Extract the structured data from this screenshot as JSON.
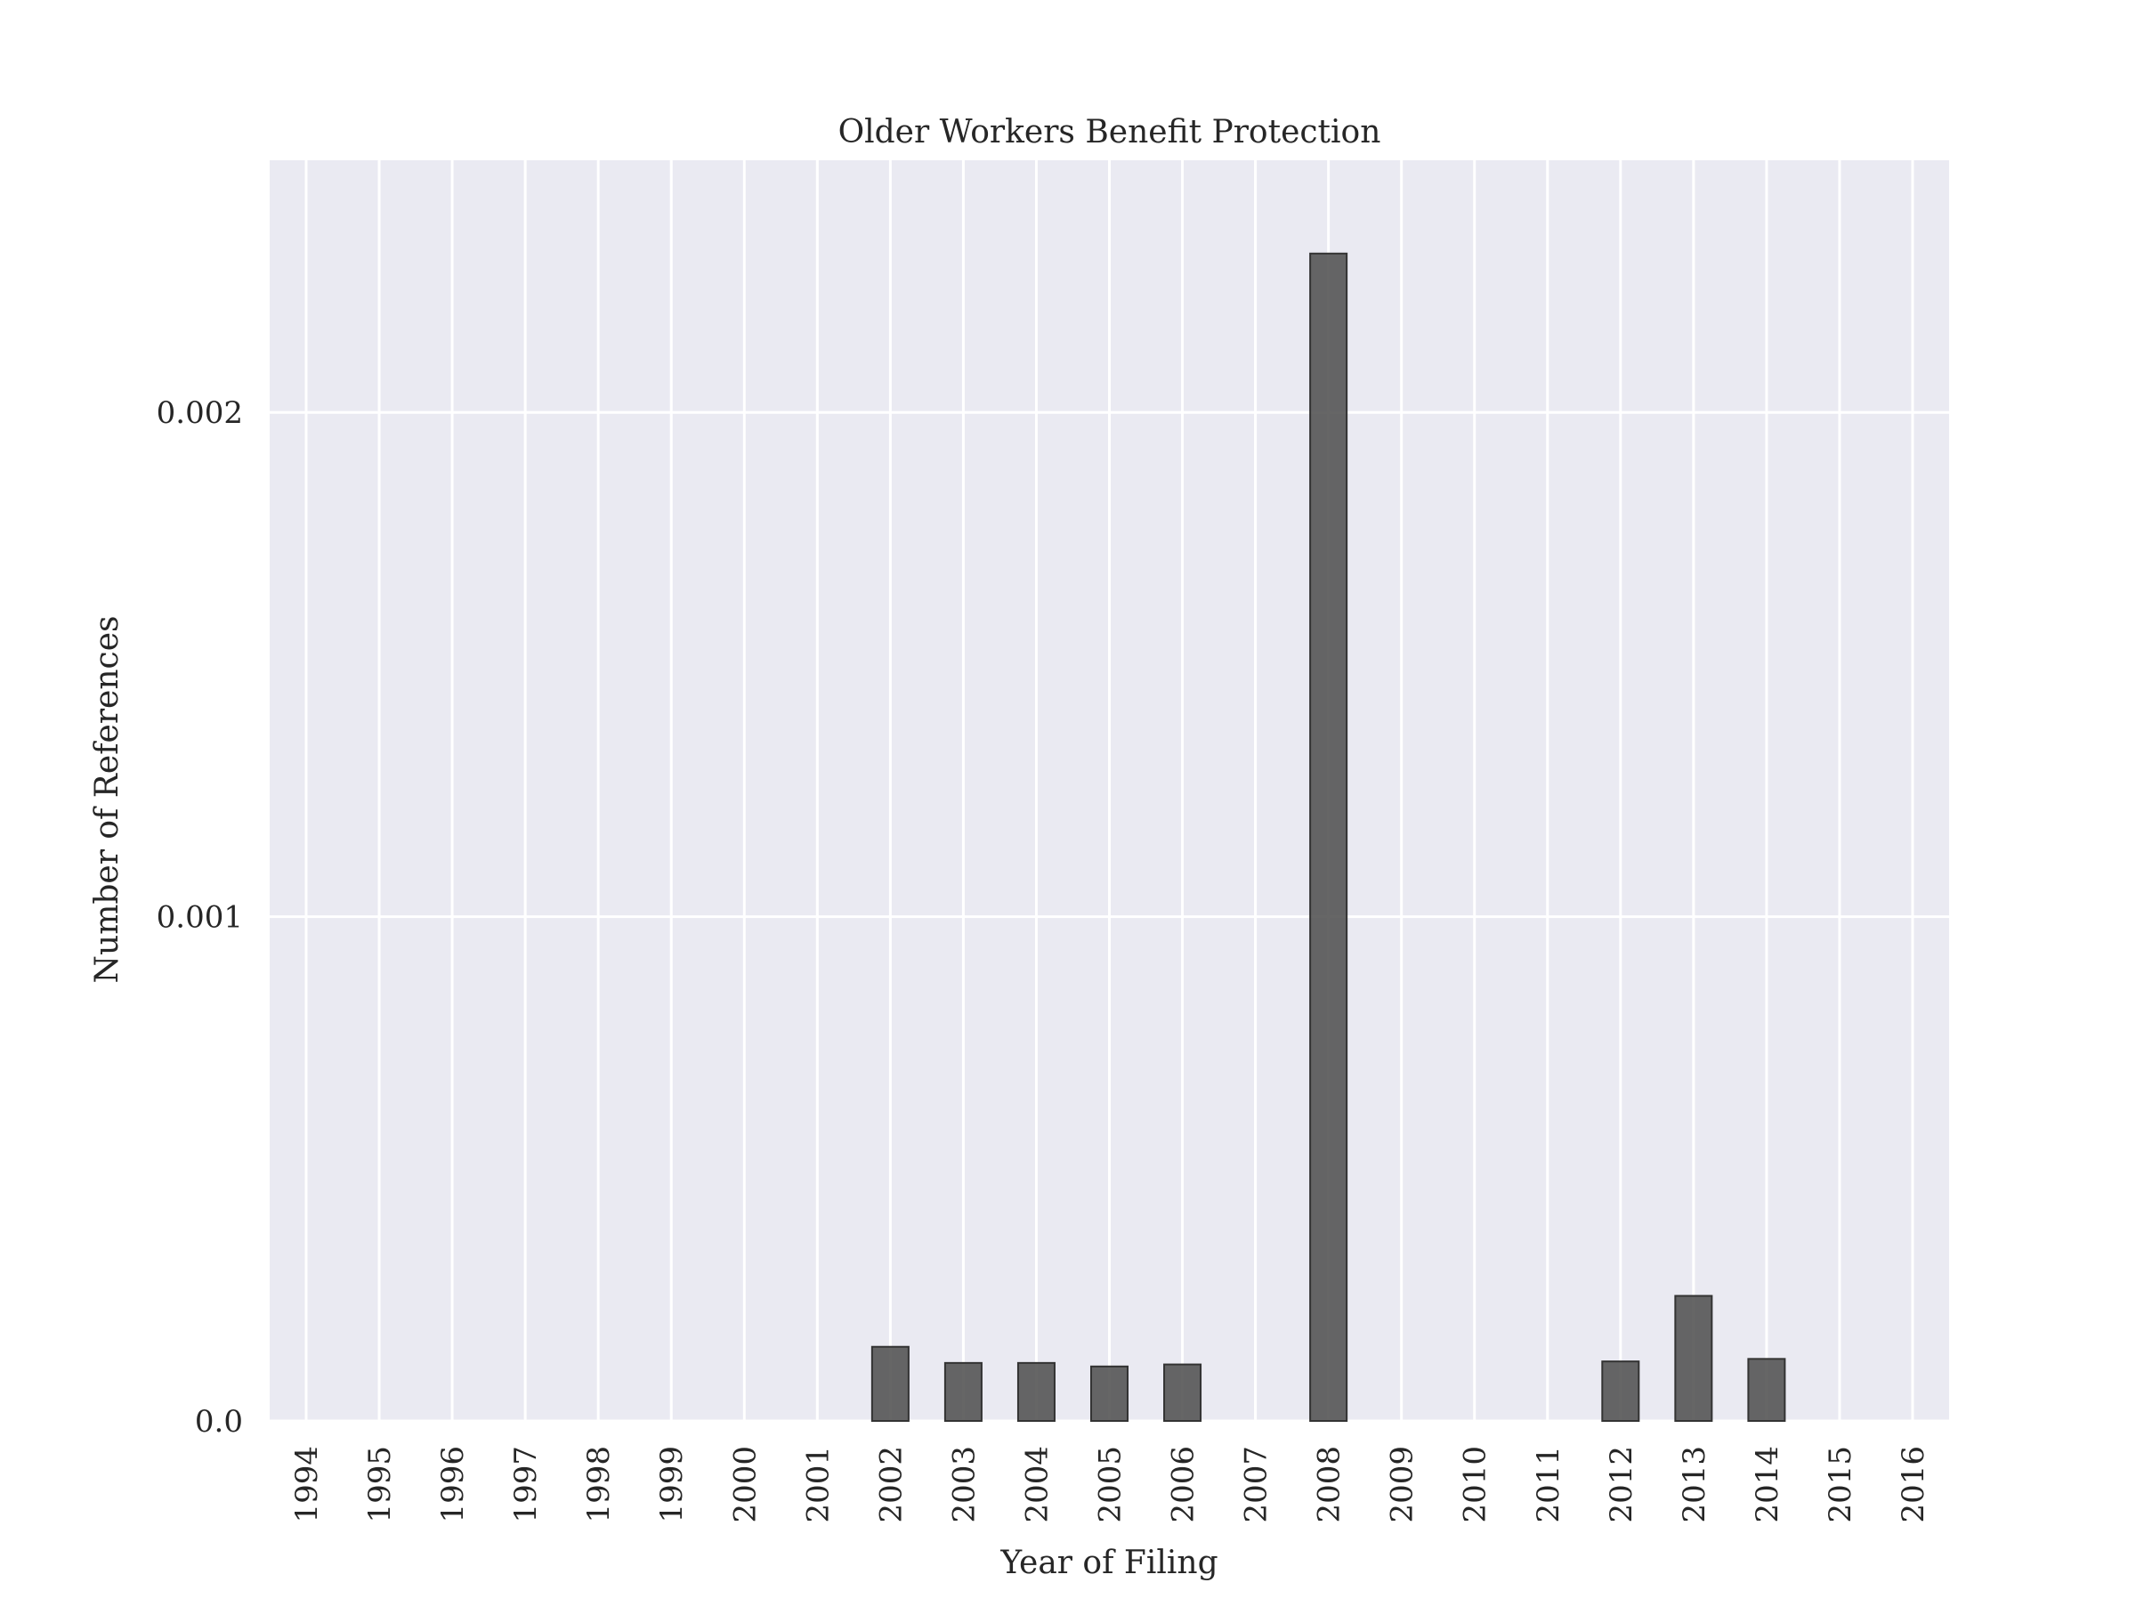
{
  "chart_data": {
    "type": "bar",
    "title": "Older Workers Benefit Protection",
    "xlabel": "Year of Filing",
    "ylabel": "Number of References",
    "categories": [
      "1994",
      "1995",
      "1996",
      "1997",
      "1998",
      "1999",
      "2000",
      "2001",
      "2002",
      "2003",
      "2004",
      "2005",
      "2006",
      "2007",
      "2008",
      "2009",
      "2010",
      "2011",
      "2012",
      "2013",
      "2014",
      "2015",
      "2016"
    ],
    "values": [
      0,
      0,
      0,
      0,
      0,
      0,
      0,
      0,
      0.000147,
      0.000115,
      0.000115,
      0.000108,
      0.000112,
      0,
      0.002315,
      0,
      0,
      0,
      0.000118,
      0.000248,
      0.000123,
      0,
      0
    ],
    "yticks": [
      0.0,
      0.001,
      0.002
    ],
    "ytick_labels": [
      "0.0",
      "0.001",
      "0.002"
    ],
    "ylim": [
      0,
      0.0025
    ],
    "grid": true,
    "colors": {
      "bar": "#555555",
      "bar_edge": "#333333",
      "plot_bg": "#eaeaf2",
      "grid": "#ffffff"
    }
  }
}
